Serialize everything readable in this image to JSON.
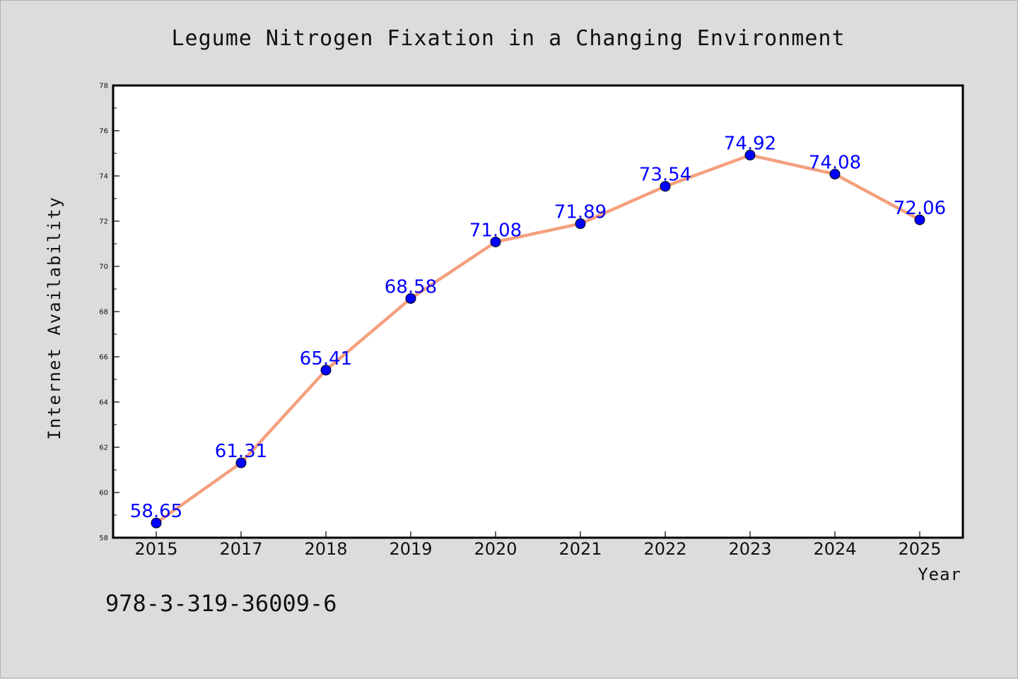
{
  "chart_data": {
    "type": "line",
    "title": "Legume Nitrogen Fixation in a Changing Environment",
    "xlabel": "Year",
    "ylabel": "Internet Availability",
    "categories": [
      "2015",
      "2017",
      "2018",
      "2019",
      "2020",
      "2021",
      "2022",
      "2023",
      "2024",
      "2025"
    ],
    "series": [
      {
        "values": [
          58.65,
          61.31,
          65.41,
          68.58,
          71.08,
          71.89,
          73.54,
          74.92,
          74.08,
          72.06
        ],
        "labels": [
          "58.65",
          "61.31",
          "65.41",
          "68.58",
          "71.08",
          "71.89",
          "73.54",
          "74.92",
          "74.08",
          "72.06"
        ]
      }
    ],
    "ylim": [
      58,
      78
    ],
    "yticks": [
      "58",
      "60",
      "62",
      "64",
      "66",
      "68",
      "70",
      "72",
      "74",
      "76",
      "78"
    ],
    "grid": false,
    "legend": "none",
    "colors": {
      "line": "#f4a07e",
      "marker": "#0000ff",
      "data_label": "#0000ff",
      "plot_background": "#ffffff",
      "figure_background": "#dcdcdc"
    }
  },
  "footnote": "978-3-319-36009-6"
}
